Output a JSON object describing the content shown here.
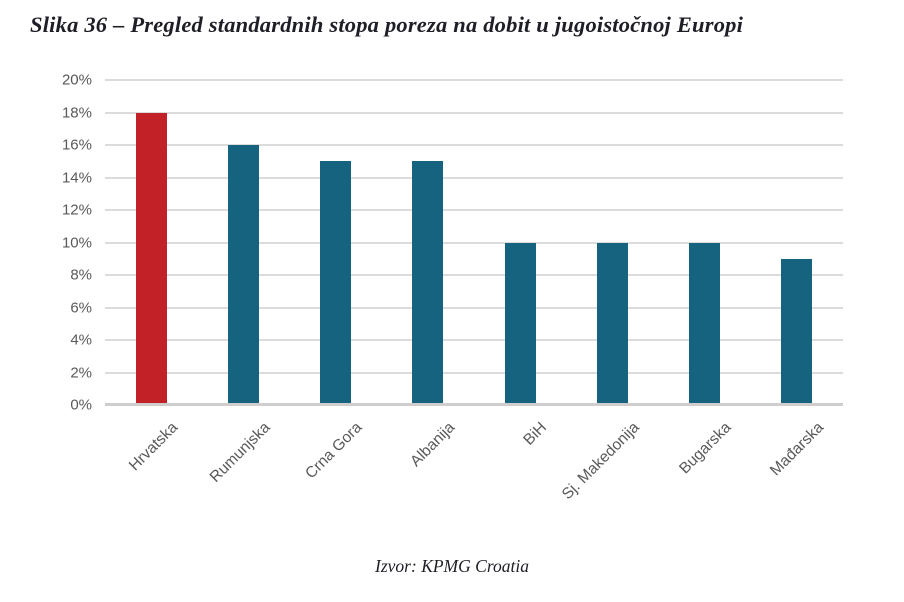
{
  "figure": {
    "title": "Slika 36 – Pregled standardnih stopa poreza na dobit u jugoistočnoj Europi",
    "source": "Izvor: KPMG Croatia"
  },
  "chart_data": {
    "type": "bar",
    "title": "Slika 36 – Pregled standardnih stopa poreza na dobit u jugoistočnoj Europi",
    "categories": [
      "Hrvatska",
      "Rumunjska",
      "Crna Gora",
      "Albanija",
      "BiH",
      "Sj. Makedonija",
      "Bugarska",
      "Mađarska"
    ],
    "values": [
      18,
      16,
      15,
      15,
      10,
      10,
      10,
      9
    ],
    "unit": "%",
    "xlabel": "",
    "ylabel": "",
    "ylim": [
      0,
      20
    ],
    "ytick_step": 2,
    "ytick_labels": [
      "0%",
      "2%",
      "4%",
      "6%",
      "8%",
      "10%",
      "12%",
      "14%",
      "16%",
      "18%",
      "20%"
    ],
    "grid": "horizontal",
    "legend": "none",
    "highlight_index": 0,
    "colors": {
      "highlight_bar": "#c22128",
      "default_bar": "#166380",
      "gridline": "#dcdcdc",
      "baseline": "#cfcecd",
      "axis_text": "#595959",
      "title_text": "#1e1e26"
    }
  }
}
